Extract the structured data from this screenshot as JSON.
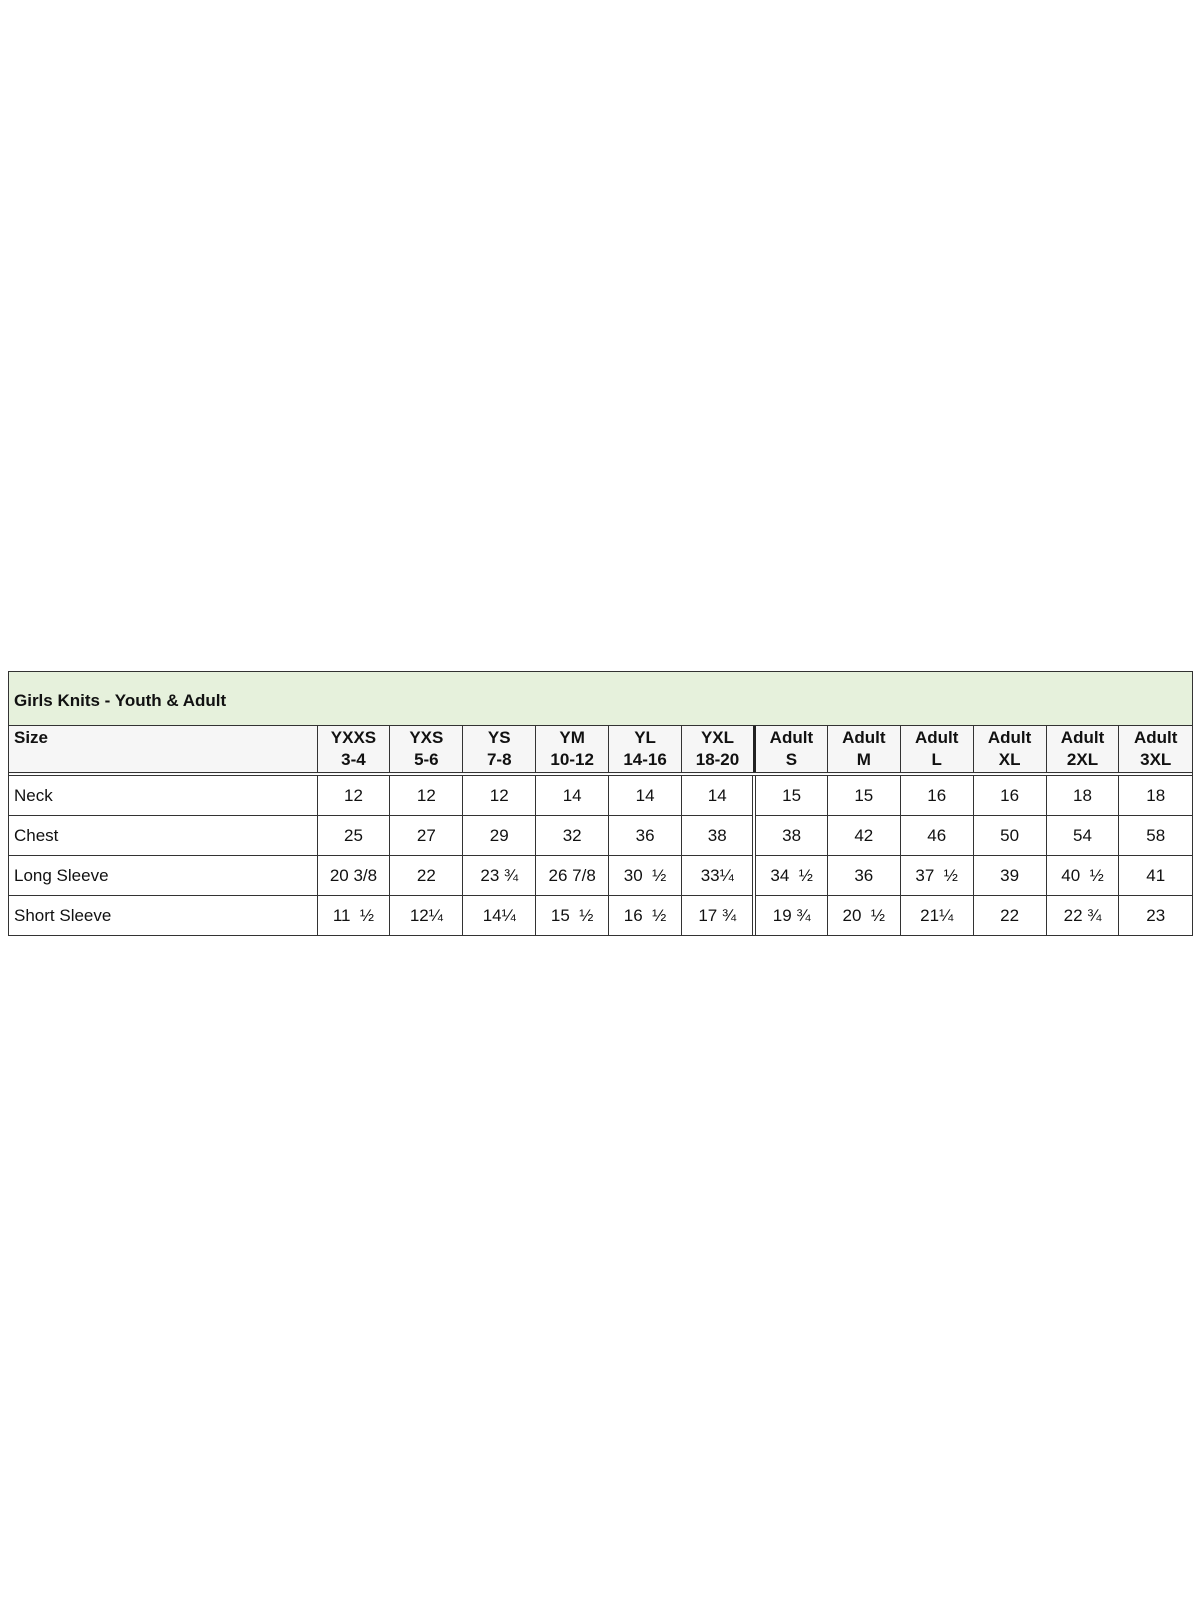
{
  "title": "Girls Knits - Youth & Adult",
  "header_label": "Size",
  "columns": [
    {
      "line1": "YXXS",
      "line2": "3-4"
    },
    {
      "line1": "YXS",
      "line2": "5-6"
    },
    {
      "line1": "YS",
      "line2": "7-8"
    },
    {
      "line1": "YM",
      "line2": "10-12"
    },
    {
      "line1": "YL",
      "line2": "14-16"
    },
    {
      "line1": "YXL",
      "line2": "18-20"
    },
    {
      "line1": "Adult",
      "line2": "S"
    },
    {
      "line1": "Adult",
      "line2": "M"
    },
    {
      "line1": "Adult",
      "line2": "L"
    },
    {
      "line1": "Adult",
      "line2": "XL"
    },
    {
      "line1": "Adult",
      "line2": "2XL"
    },
    {
      "line1": "Adult",
      "line2": "3XL"
    }
  ],
  "rows": [
    {
      "label": "Neck",
      "values": [
        "12",
        "12",
        "12",
        "14",
        "14",
        "14",
        "15",
        "15",
        "16",
        "16",
        "18",
        "18"
      ]
    },
    {
      "label": "Chest",
      "values": [
        "25",
        "27",
        "29",
        "32",
        "36",
        "38",
        "38",
        "42",
        "46",
        "50",
        "54",
        "58"
      ]
    },
    {
      "label": "Long Sleeve",
      "values": [
        "20 3/8",
        "22",
        "23 ¾",
        "26 7/8",
        "30  ½",
        "33¼",
        "34  ½",
        "36",
        "37  ½",
        "39",
        "40  ½",
        "41"
      ]
    },
    {
      "label": "Short Sleeve",
      "values": [
        "11  ½",
        "12¼",
        "14¼",
        "15  ½",
        "16  ½",
        "17 ¾",
        "19 ¾",
        "20  ½",
        "21¼",
        "22",
        "22 ¾",
        "23"
      ]
    }
  ],
  "colors": {
    "title_background": "#e6f1dc",
    "header_background": "#f6f6f6"
  }
}
